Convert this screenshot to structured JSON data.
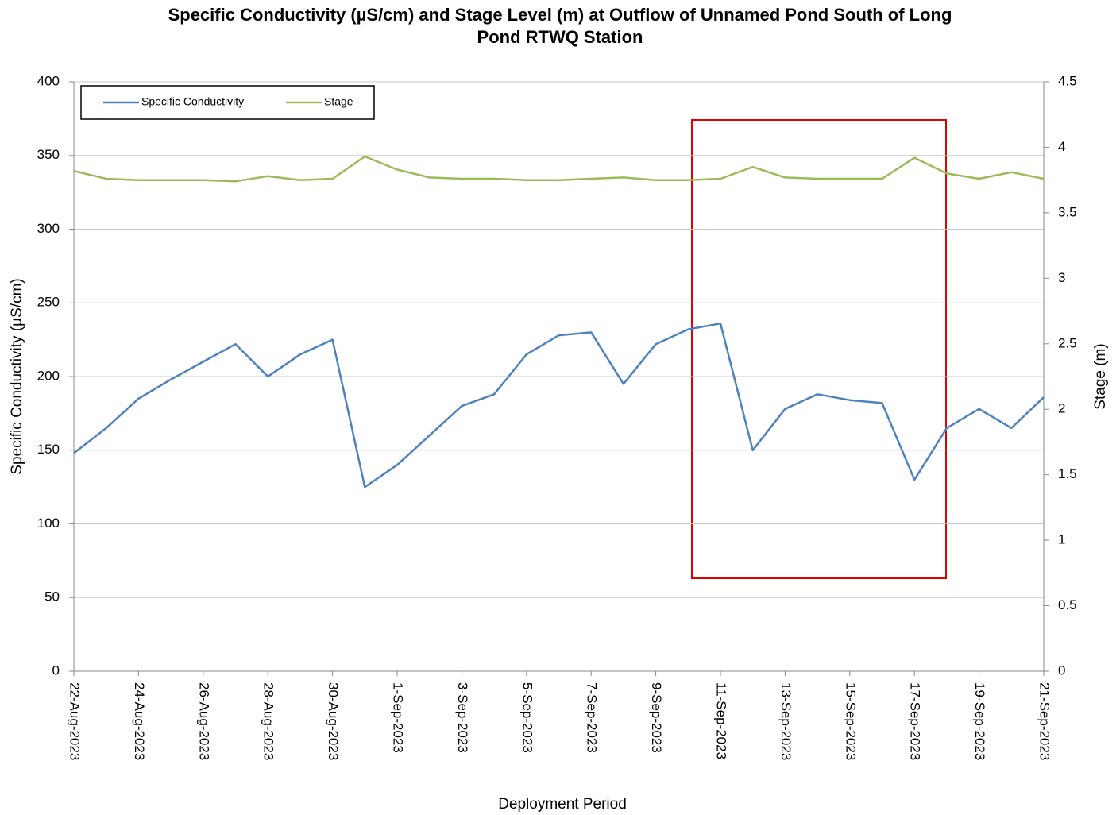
{
  "chart_data": {
    "type": "line",
    "title": "Specific Conductivity (µS/cm) and Stage Level (m) at Outflow of Unnamed Pond South of Long Pond RTWQ Station",
    "title_lines": [
      "Specific Conductivity (µS/cm) and Stage Level (m) at Outflow of Unnamed Pond South of Long",
      "Pond RTWQ Station"
    ],
    "x_label": "Deployment Period",
    "y_label": "Specific Conductivity (µS/cm)",
    "y2_label": "Stage (m)",
    "x": [
      "22-Aug-2023",
      "23-Aug-2023",
      "24-Aug-2023",
      "25-Aug-2023",
      "26-Aug-2023",
      "27-Aug-2023",
      "28-Aug-2023",
      "29-Aug-2023",
      "30-Aug-2023",
      "31-Aug-2023",
      "1-Sep-2023",
      "2-Sep-2023",
      "3-Sep-2023",
      "4-Sep-2023",
      "5-Sep-2023",
      "6-Sep-2023",
      "7-Sep-2023",
      "8-Sep-2023",
      "9-Sep-2023",
      "10-Sep-2023",
      "11-Sep-2023",
      "12-Sep-2023",
      "13-Sep-2023",
      "14-Sep-2023",
      "15-Sep-2023",
      "16-Sep-2023",
      "17-Sep-2023",
      "18-Sep-2023",
      "19-Sep-2023",
      "20-Sep-2023",
      "21-Sep-2023"
    ],
    "series": [
      {
        "name": "Specific Conductivity",
        "color": "#4f81bd",
        "values": [
          148,
          165,
          185,
          198,
          210,
          222,
          200,
          215,
          225,
          125,
          140,
          160,
          180,
          188,
          215,
          228,
          230,
          195,
          222,
          232,
          236,
          150,
          178,
          188,
          184,
          182,
          130,
          165,
          178,
          165,
          186
        ]
      },
      {
        "name": "Stage",
        "color": "#9bbb59",
        "axis": "y2",
        "values": [
          3.82,
          3.76,
          3.75,
          3.75,
          3.75,
          3.74,
          3.78,
          3.75,
          3.76,
          3.93,
          3.83,
          3.77,
          3.76,
          3.76,
          3.75,
          3.75,
          3.76,
          3.77,
          3.75,
          3.75,
          3.76,
          3.85,
          3.77,
          3.76,
          3.76,
          3.76,
          3.92,
          3.8,
          3.76,
          3.81,
          3.76
        ]
      }
    ],
    "ylim": [
      0,
      400
    ],
    "yticks": [
      0,
      50,
      100,
      150,
      200,
      250,
      300,
      350,
      400
    ],
    "y2lim": [
      0,
      4.5
    ],
    "y2ticks": [
      0,
      0.5,
      1,
      1.5,
      2,
      2.5,
      3,
      3.5,
      4,
      4.5
    ],
    "xticks_every": 2,
    "grid": true,
    "legend": "top-left"
  }
}
